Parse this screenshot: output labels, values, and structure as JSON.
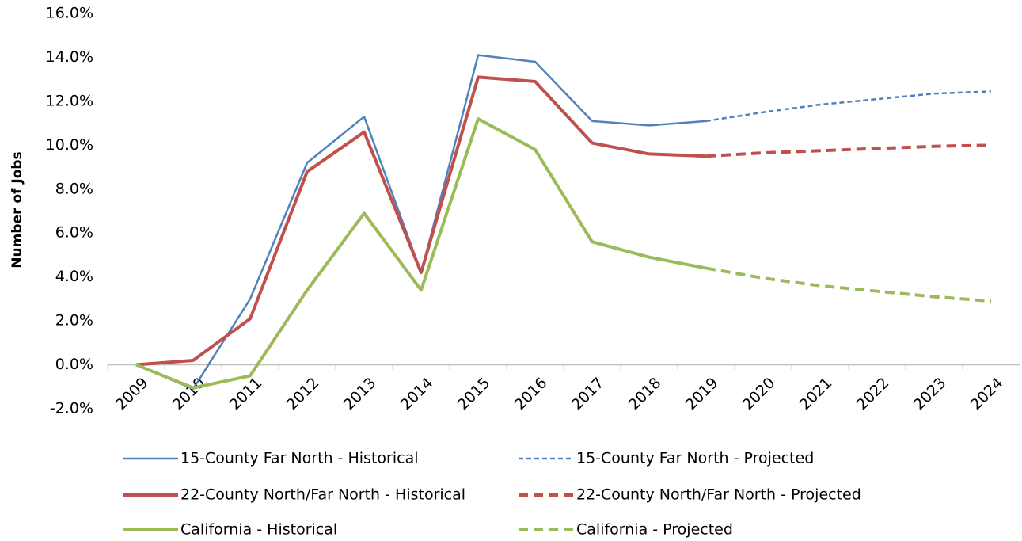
{
  "chart_data": {
    "type": "line",
    "y_axis_label": "Number of Jobs",
    "categories": [
      "2009",
      "2010",
      "2011",
      "2012",
      "2013",
      "2014",
      "2015",
      "2016",
      "2017",
      "2018",
      "2019",
      "2020",
      "2021",
      "2022",
      "2023",
      "2024"
    ],
    "ylim": [
      -2,
      16
    ],
    "yticks": [
      {
        "value": -2,
        "label": "-2.0%"
      },
      {
        "value": 0,
        "label": "0.0%"
      },
      {
        "value": 2,
        "label": "2.0%"
      },
      {
        "value": 4,
        "label": "4.0%"
      },
      {
        "value": 6,
        "label": "6.0%"
      },
      {
        "value": 8,
        "label": "8.0%"
      },
      {
        "value": 10,
        "label": "10.0%"
      },
      {
        "value": 12,
        "label": "12.0%"
      },
      {
        "value": 14,
        "label": "14.0%"
      },
      {
        "value": 16,
        "label": "16.0%"
      }
    ],
    "grid": false,
    "series": [
      {
        "name": "15-County Far North - Historical",
        "color": "#4f81bd",
        "line_style": "solid",
        "values": [
          0,
          -1.1,
          3.0,
          9.2,
          11.3,
          4.2,
          14.1,
          13.8,
          11.1,
          10.9,
          11.1,
          null,
          null,
          null,
          null,
          null
        ]
      },
      {
        "name": "15-County Far North - Projected",
        "color": "#4f81bd",
        "line_style": "dotted",
        "values": [
          null,
          null,
          null,
          null,
          null,
          null,
          null,
          null,
          null,
          null,
          11.1,
          11.5,
          11.85,
          12.1,
          12.35,
          12.45
        ]
      },
      {
        "name": "22-County North/Far North - Historical",
        "color": "#c0504d",
        "line_style": "solid",
        "values": [
          0,
          0.2,
          2.1,
          8.8,
          10.6,
          4.2,
          13.1,
          12.9,
          10.1,
          9.6,
          9.5,
          null,
          null,
          null,
          null,
          null
        ]
      },
      {
        "name": "22-County North/Far North - Projected",
        "color": "#c0504d",
        "line_style": "dashed",
        "values": [
          null,
          null,
          null,
          null,
          null,
          null,
          null,
          null,
          null,
          null,
          9.5,
          9.65,
          9.75,
          9.85,
          9.95,
          10.0
        ]
      },
      {
        "name": "California - Historical",
        "color": "#9bbb59",
        "line_style": "solid",
        "values": [
          0,
          -1.05,
          -0.5,
          3.4,
          6.9,
          3.4,
          11.2,
          9.8,
          5.6,
          4.9,
          4.4,
          null,
          null,
          null,
          null,
          null
        ]
      },
      {
        "name": "California - Projected",
        "color": "#9bbb59",
        "line_style": "dashed",
        "values": [
          null,
          null,
          null,
          null,
          null,
          null,
          null,
          null,
          null,
          null,
          4.4,
          3.95,
          3.6,
          3.35,
          3.1,
          2.9
        ]
      }
    ]
  }
}
